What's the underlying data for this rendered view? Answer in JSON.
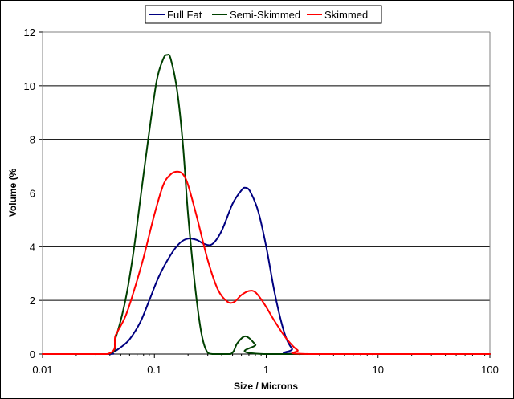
{
  "chart_data": {
    "type": "line",
    "title": "",
    "xlabel": "Size / Microns",
    "ylabel": "Volume (%",
    "x_scale": "log",
    "xlim": [
      0.01,
      100
    ],
    "ylim": [
      0,
      12
    ],
    "x_ticks": [
      "0.01",
      "0.1",
      "1",
      "10",
      "100"
    ],
    "y_ticks": [
      "0",
      "2",
      "4",
      "6",
      "8",
      "10",
      "12"
    ],
    "grid": "horizontal",
    "legend_position": "top",
    "series": [
      {
        "name": "Full Fat",
        "color": "#000080",
        "points": [
          [
            0.01,
            0
          ],
          [
            0.038,
            0
          ],
          [
            0.042,
            0.05
          ],
          [
            0.05,
            0.25
          ],
          [
            0.06,
            0.55
          ],
          [
            0.075,
            1.2
          ],
          [
            0.09,
            2.0
          ],
          [
            0.11,
            2.9
          ],
          [
            0.14,
            3.7
          ],
          [
            0.17,
            4.15
          ],
          [
            0.2,
            4.3
          ],
          [
            0.24,
            4.25
          ],
          [
            0.28,
            4.1
          ],
          [
            0.33,
            4.1
          ],
          [
            0.4,
            4.6
          ],
          [
            0.5,
            5.6
          ],
          [
            0.6,
            6.1
          ],
          [
            0.65,
            6.2
          ],
          [
            0.72,
            6.05
          ],
          [
            0.85,
            5.3
          ],
          [
            1.0,
            4.0
          ],
          [
            1.2,
            2.2
          ],
          [
            1.45,
            0.8
          ],
          [
            1.7,
            0.2
          ],
          [
            2.0,
            0
          ],
          [
            100,
            0
          ]
        ]
      },
      {
        "name": "Semi-Skimmed",
        "color": "#004000",
        "points": [
          [
            0.01,
            0
          ],
          [
            0.038,
            0
          ],
          [
            0.045,
            0.6
          ],
          [
            0.055,
            2.0
          ],
          [
            0.065,
            3.8
          ],
          [
            0.075,
            5.8
          ],
          [
            0.09,
            8.3
          ],
          [
            0.105,
            10.2
          ],
          [
            0.12,
            11.0
          ],
          [
            0.13,
            11.15
          ],
          [
            0.14,
            11.0
          ],
          [
            0.16,
            9.8
          ],
          [
            0.18,
            7.8
          ],
          [
            0.2,
            5.2
          ],
          [
            0.23,
            2.6
          ],
          [
            0.26,
            0.9
          ],
          [
            0.29,
            0.15
          ],
          [
            0.33,
            0
          ],
          [
            0.48,
            0
          ],
          [
            0.55,
            0.4
          ],
          [
            0.63,
            0.65
          ],
          [
            0.7,
            0.6
          ],
          [
            0.8,
            0.35
          ],
          [
            0.95,
            0
          ],
          [
            100,
            0
          ]
        ]
      },
      {
        "name": "Skimmed",
        "color": "#FF0000",
        "points": [
          [
            0.01,
            0
          ],
          [
            0.038,
            0
          ],
          [
            0.045,
            0.7
          ],
          [
            0.055,
            1.4
          ],
          [
            0.065,
            2.3
          ],
          [
            0.08,
            3.6
          ],
          [
            0.1,
            5.2
          ],
          [
            0.12,
            6.3
          ],
          [
            0.14,
            6.7
          ],
          [
            0.16,
            6.8
          ],
          [
            0.18,
            6.7
          ],
          [
            0.2,
            6.3
          ],
          [
            0.24,
            5.1
          ],
          [
            0.3,
            3.5
          ],
          [
            0.37,
            2.4
          ],
          [
            0.45,
            1.95
          ],
          [
            0.52,
            1.95
          ],
          [
            0.6,
            2.2
          ],
          [
            0.7,
            2.35
          ],
          [
            0.8,
            2.3
          ],
          [
            0.95,
            1.9
          ],
          [
            1.2,
            1.2
          ],
          [
            1.5,
            0.6
          ],
          [
            1.9,
            0.15
          ],
          [
            2.4,
            0
          ],
          [
            100,
            0
          ]
        ]
      }
    ]
  }
}
